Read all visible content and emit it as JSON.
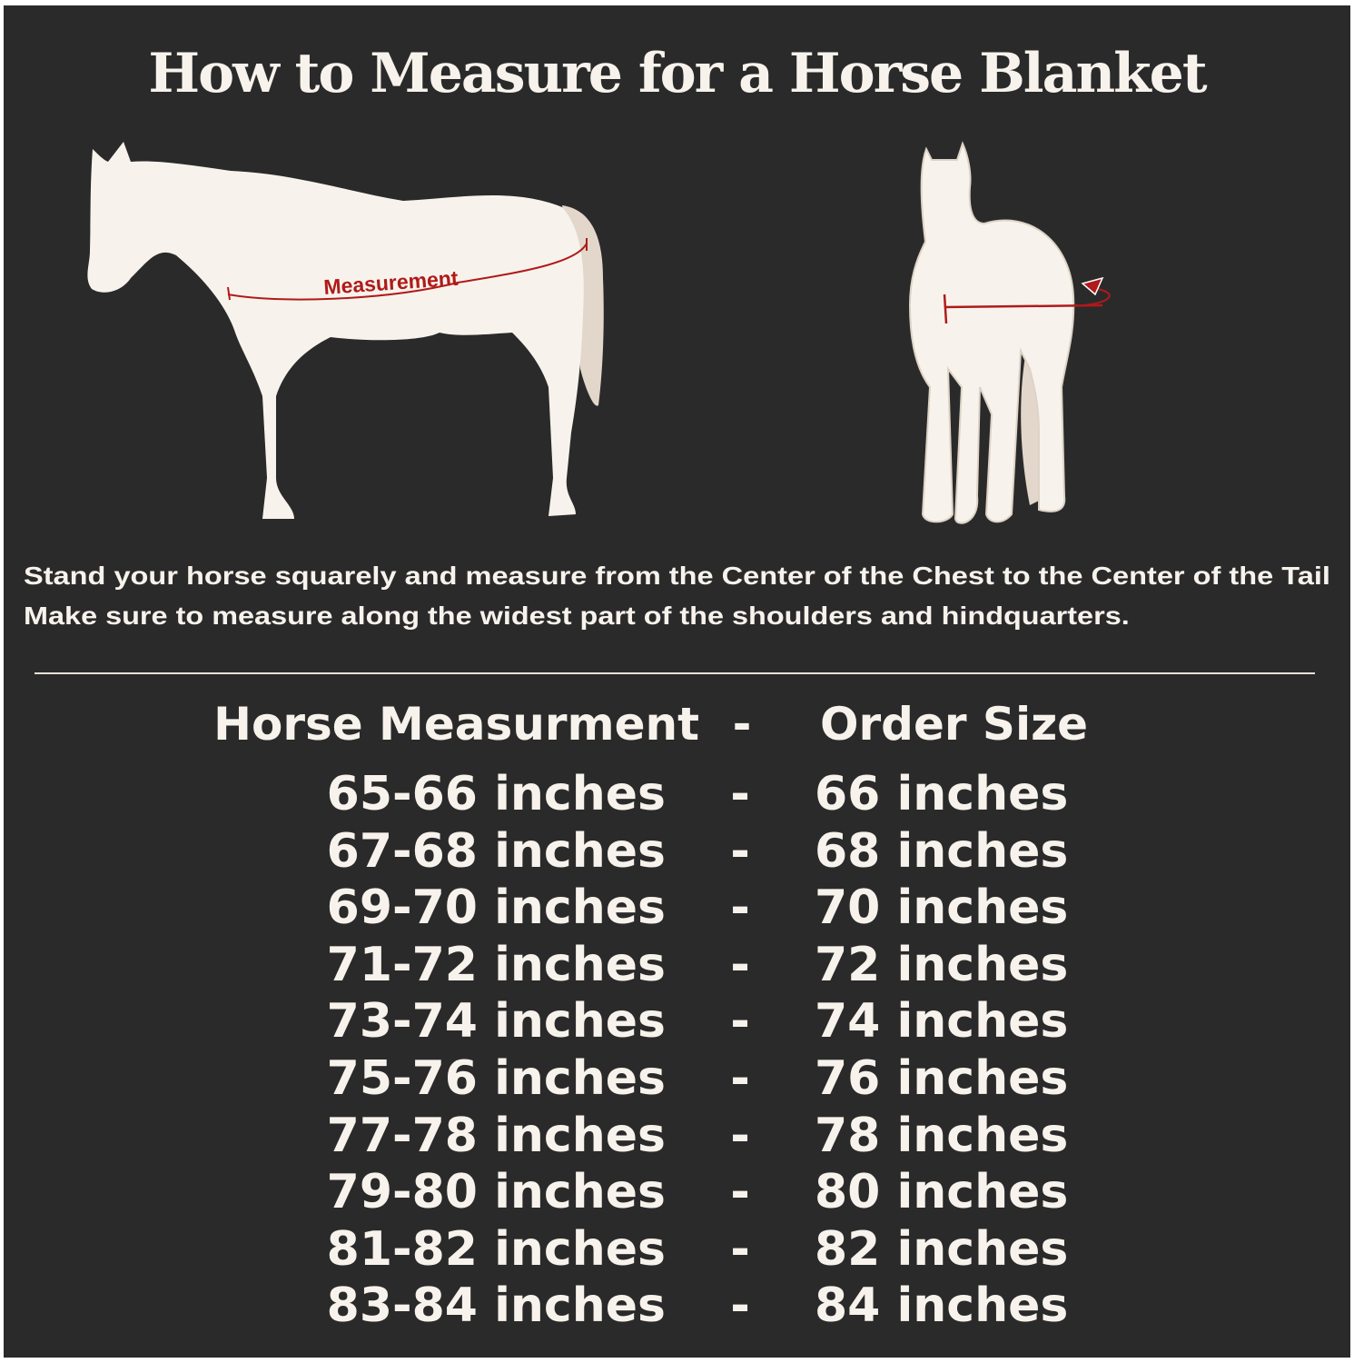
{
  "title": "How to Measure for a Horse Blanket",
  "illustrations": {
    "side_view_label": "Measurement",
    "measure_color": "#b01a1a",
    "horse_color": "#f7f3ec",
    "tail_color": "#e2d7ca"
  },
  "instructions": [
    "Stand your horse squarely and measure from the Center of the Chest to the Center of the Tail",
    "Make sure to measure along the widest part of the shoulders and hindquarters."
  ],
  "table": {
    "header": {
      "left": "Horse Measurment",
      "separator": "-",
      "right": "Order Size"
    },
    "rows": [
      {
        "measurement": "65-66 inches",
        "sep": "-",
        "size": "66 inches"
      },
      {
        "measurement": "67-68 inches",
        "sep": "-",
        "size": "68 inches"
      },
      {
        "measurement": "69-70 inches",
        "sep": "-",
        "size": "70 inches"
      },
      {
        "measurement": "71-72 inches",
        "sep": "-",
        "size": "72 inches"
      },
      {
        "measurement": "73-74 inches",
        "sep": "-",
        "size": "74 inches"
      },
      {
        "measurement": "75-76 inches",
        "sep": "-",
        "size": "76 inches"
      },
      {
        "measurement": "77-78 inches",
        "sep": "-",
        "size": "78 inches"
      },
      {
        "measurement": "79-80 inches",
        "sep": "-",
        "size": "80 inches"
      },
      {
        "measurement": "81-82 inches",
        "sep": "-",
        "size": "82 inches"
      },
      {
        "measurement": "83-84 inches",
        "sep": "-",
        "size": "84 inches"
      }
    ]
  },
  "colors": {
    "background": "#2b2a2b",
    "text": "#f7f3ec"
  }
}
